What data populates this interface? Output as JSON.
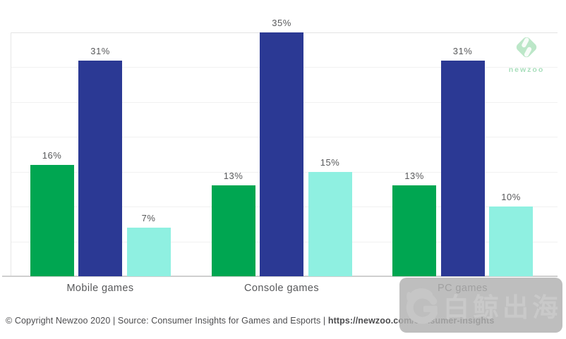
{
  "chart_data": {
    "type": "bar",
    "title": "",
    "categories": [
      "Mobile games",
      "Console games",
      "PC games"
    ],
    "series": [
      {
        "name": "green",
        "color": "#00a651",
        "values": [
          16,
          13,
          13
        ]
      },
      {
        "name": "dark-blue",
        "color": "#2b3994",
        "values": [
          31,
          35,
          31
        ]
      },
      {
        "name": "light-cyan",
        "color": "#8ff0e1",
        "values": [
          7,
          15,
          10
        ]
      }
    ],
    "value_label_suffix": "%",
    "xlabel": "",
    "ylabel": "",
    "ylim": [
      0,
      35
    ],
    "grid_step": 5,
    "grid": "horizontal",
    "legend": "none",
    "label_color": "#58595b"
  },
  "branding": {
    "logo_text": "newzoo",
    "logo_color": "#b9e6c6"
  },
  "watermark": {
    "text": "白鲸出海"
  },
  "footer": {
    "copyright": "© Copyright Newzoo 2020 | Source: Consumer Insights for Games and Esports | ",
    "link": "https://newzoo.com/consumer-insights"
  }
}
